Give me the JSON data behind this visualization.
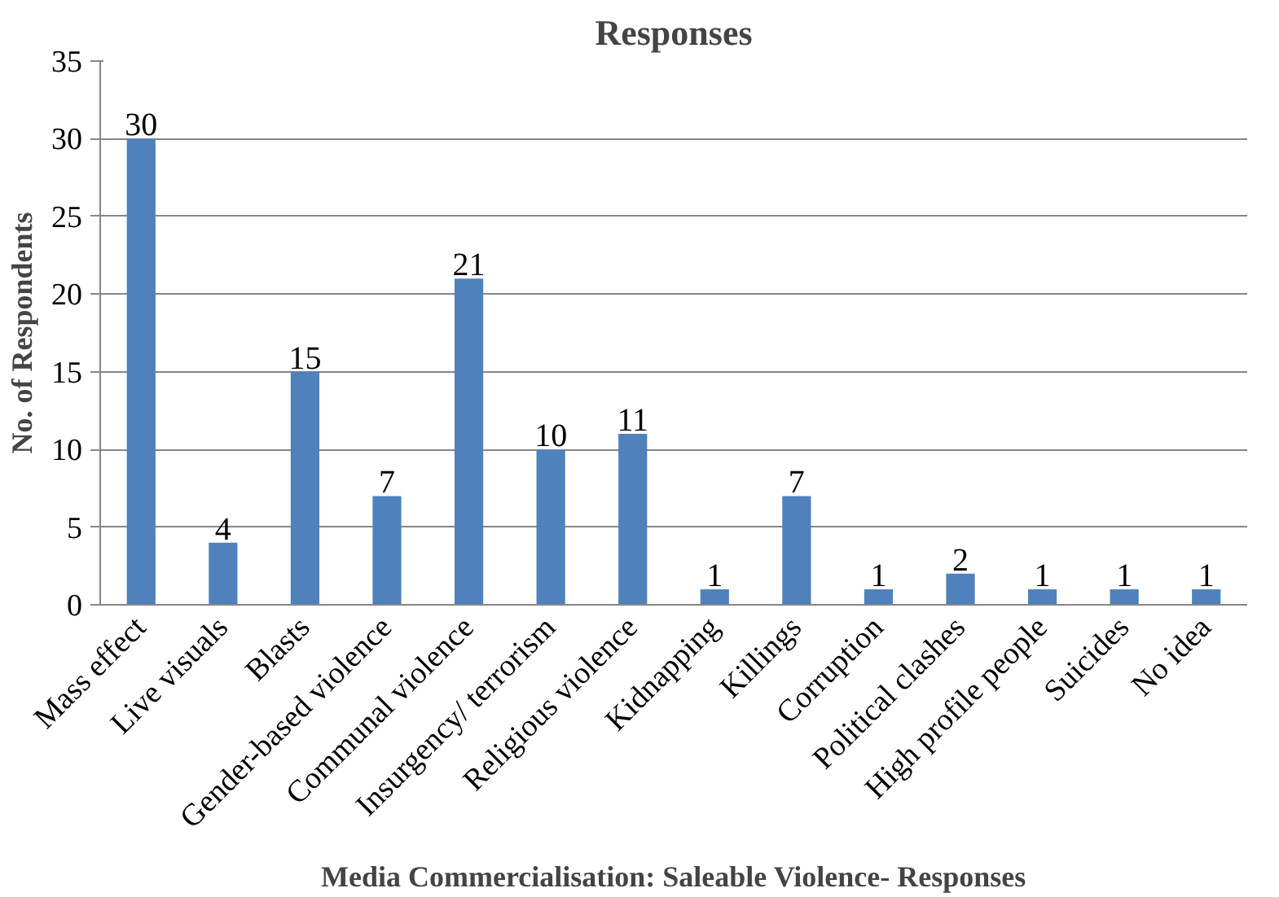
{
  "chart_data": {
    "type": "bar",
    "title": "Responses",
    "xlabel": "Media Commercialisation: Saleable Violence- Responses",
    "ylabel": "No. of Respondents",
    "categories": [
      "Mass effect",
      "Live visuals",
      "Blasts",
      "Gender-based violence",
      "Communal violence",
      "Insurgency/ terrorism",
      "Religious violence",
      "Kidnapping",
      "Killings",
      "Corruption",
      "Political clashes",
      "High profile people",
      "Suicides",
      "No idea"
    ],
    "values": [
      30,
      4,
      15,
      7,
      21,
      10,
      11,
      1,
      7,
      1,
      2,
      1,
      1,
      1
    ],
    "color": "#4f81bd",
    "ylim": [
      0,
      35
    ],
    "yticks": [
      0,
      5,
      10,
      15,
      20,
      25,
      30,
      35
    ],
    "grid": "y",
    "data_labels": true
  }
}
